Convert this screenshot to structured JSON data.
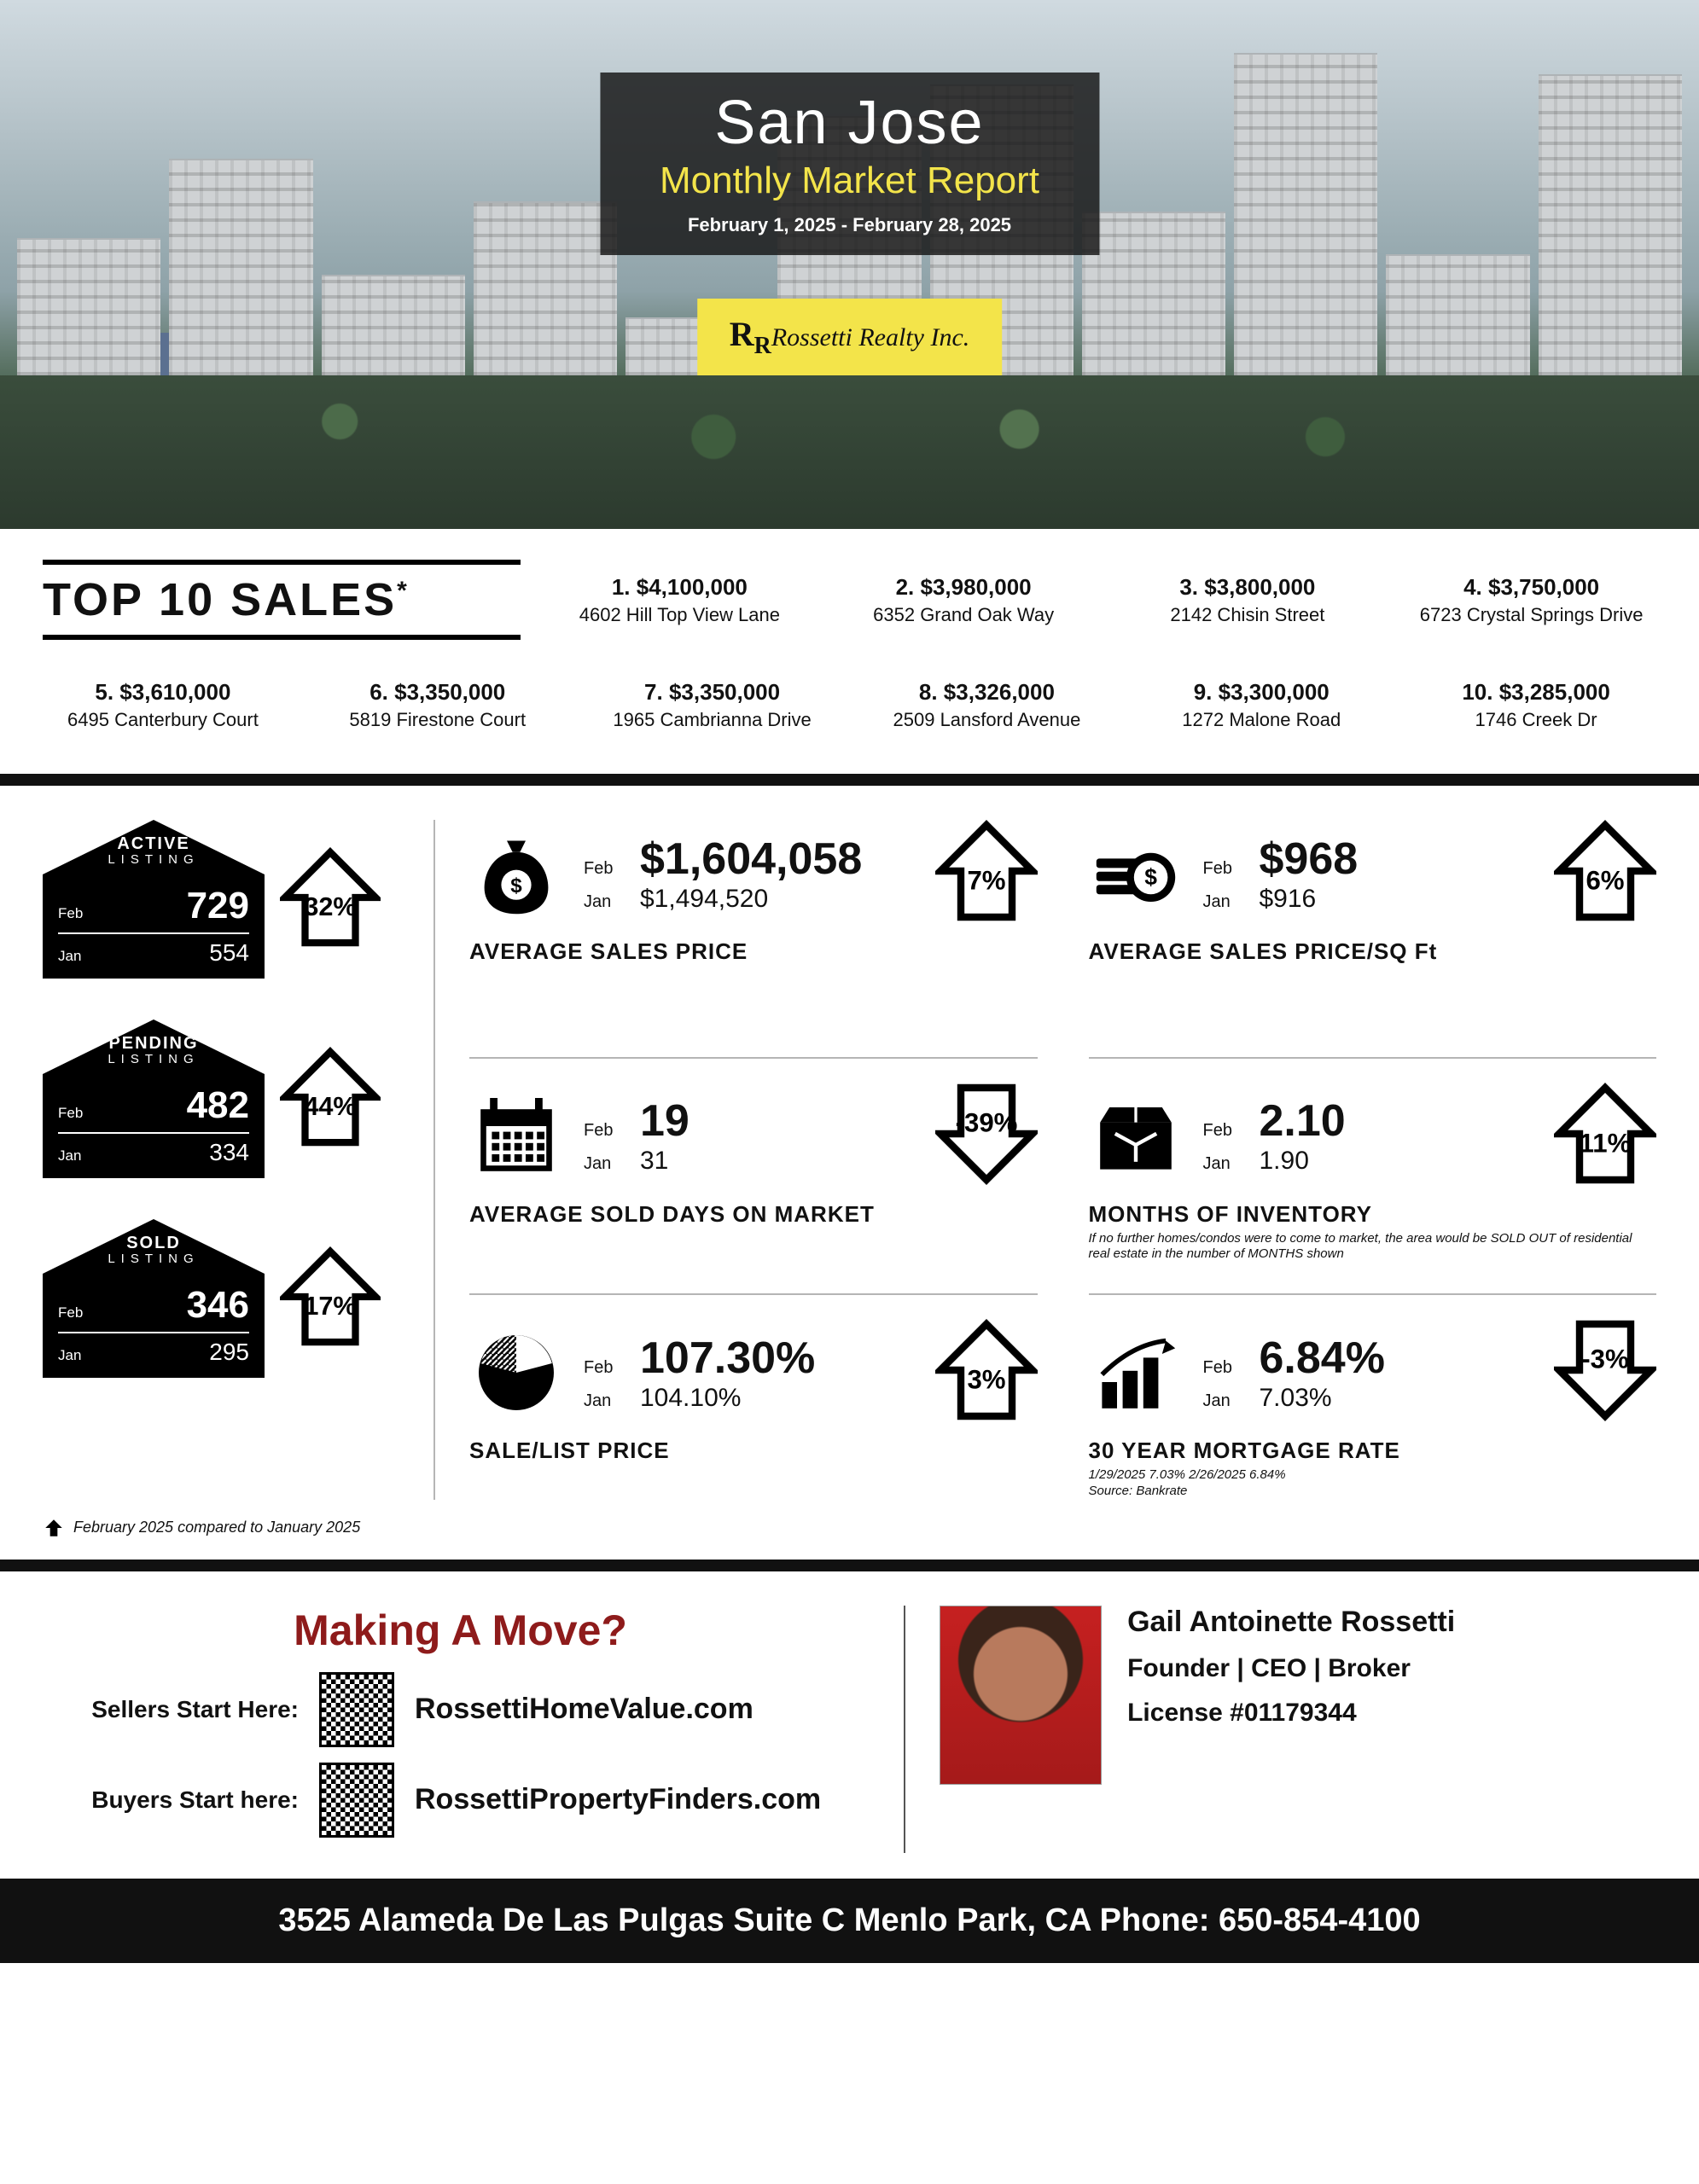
{
  "hero": {
    "city": "San Jose",
    "subtitle": "Monthly Market Report",
    "date_range": "February 1, 2025 - February 28, 2025",
    "logo_text": "Rossetti Realty Inc."
  },
  "colors": {
    "accent_yellow": "#f3e44a",
    "headline_red": "#8e1b1b",
    "black": "#111111",
    "rule_grey": "#b5b5b5"
  },
  "top10": {
    "heading": "TOP 10 SALES",
    "items": [
      {
        "rank": "1.",
        "price": "$4,100,000",
        "addr": "4602 Hill Top View Lane"
      },
      {
        "rank": "2.",
        "price": "$3,980,000",
        "addr": "6352 Grand Oak Way"
      },
      {
        "rank": "3.",
        "price": "$3,800,000",
        "addr": "2142 Chisin Street"
      },
      {
        "rank": "4.",
        "price": "$3,750,000",
        "addr": "6723 Crystal Springs Drive"
      },
      {
        "rank": "5.",
        "price": "$3,610,000",
        "addr": "6495 Canterbury Court"
      },
      {
        "rank": "6.",
        "price": "$3,350,000",
        "addr": "5819 Firestone Court"
      },
      {
        "rank": "7.",
        "price": "$3,350,000",
        "addr": "1965 Cambrianna Drive"
      },
      {
        "rank": "8.",
        "price": "$3,326,000",
        "addr": "2509 Lansford Avenue"
      },
      {
        "rank": "9.",
        "price": "$3,300,000",
        "addr": "1272 Malone Road"
      },
      {
        "rank": "10.",
        "price": "$3,285,000",
        "addr": "1746 Creek Dr"
      }
    ]
  },
  "month_labels": {
    "current": "Feb",
    "prior": "Jan"
  },
  "listings": [
    {
      "title1": "ACTIVE",
      "title2": "LISTING",
      "cur": "729",
      "prev": "554",
      "pct": "32%",
      "dir": "up"
    },
    {
      "title1": "PENDING",
      "title2": "LISTING",
      "cur": "482",
      "prev": "334",
      "pct": "44%",
      "dir": "up"
    },
    {
      "title1": "SOLD",
      "title2": "LISTING",
      "cur": "346",
      "prev": "295",
      "pct": "17%",
      "dir": "up"
    }
  ],
  "metrics": [
    {
      "icon": "money-bag",
      "title": "AVERAGE SALES PRICE",
      "cur": "$1,604,058",
      "prev": "$1,494,520",
      "pct": "7%",
      "dir": "up",
      "note": ""
    },
    {
      "icon": "coin-stack",
      "title": "AVERAGE SALES PRICE/SQ Ft",
      "cur": "$968",
      "prev": "$916",
      "pct": "6%",
      "dir": "up",
      "note": ""
    },
    {
      "icon": "calendar",
      "title": "AVERAGE SOLD DAYS ON MARKET",
      "cur": "19",
      "prev": "31",
      "pct": "-39%",
      "dir": "down",
      "note": ""
    },
    {
      "icon": "box",
      "title": "MONTHS OF INVENTORY",
      "cur": "2.10",
      "prev": "1.90",
      "pct": "11%",
      "dir": "up",
      "note": "If no further homes/condos were to come to market, the area would be SOLD OUT of residential real estate in the number of MONTHS shown"
    },
    {
      "icon": "pie",
      "title": "SALE/LIST PRICE",
      "cur": "107.30%",
      "prev": "104.10%",
      "pct": "3%",
      "dir": "up",
      "note": ""
    },
    {
      "icon": "bars-up",
      "title": "30 YEAR MORTGAGE RATE",
      "cur": "6.84%",
      "prev": "7.03%",
      "pct": "-3%",
      "dir": "down",
      "note": "1/29/2025 7.03%  2/26/2025 6.84%\nSource: Bankrate"
    }
  ],
  "footnote": "February 2025 compared to January 2025",
  "cta": {
    "headline": "Making A Move?",
    "seller_label": "Sellers Start Here:",
    "seller_url": "RossettiHomeValue.com",
    "buyer_label": "Buyers Start here:",
    "buyer_url": "RossettiPropertyFinders.com"
  },
  "agent": {
    "name": "Gail Antoinette Rossetti",
    "role": "Founder | CEO | Broker",
    "license": "License #01179344"
  },
  "footer": "3525 Alameda De Las Pulgas Suite C Menlo Park, CA  Phone: 650-854-4100"
}
